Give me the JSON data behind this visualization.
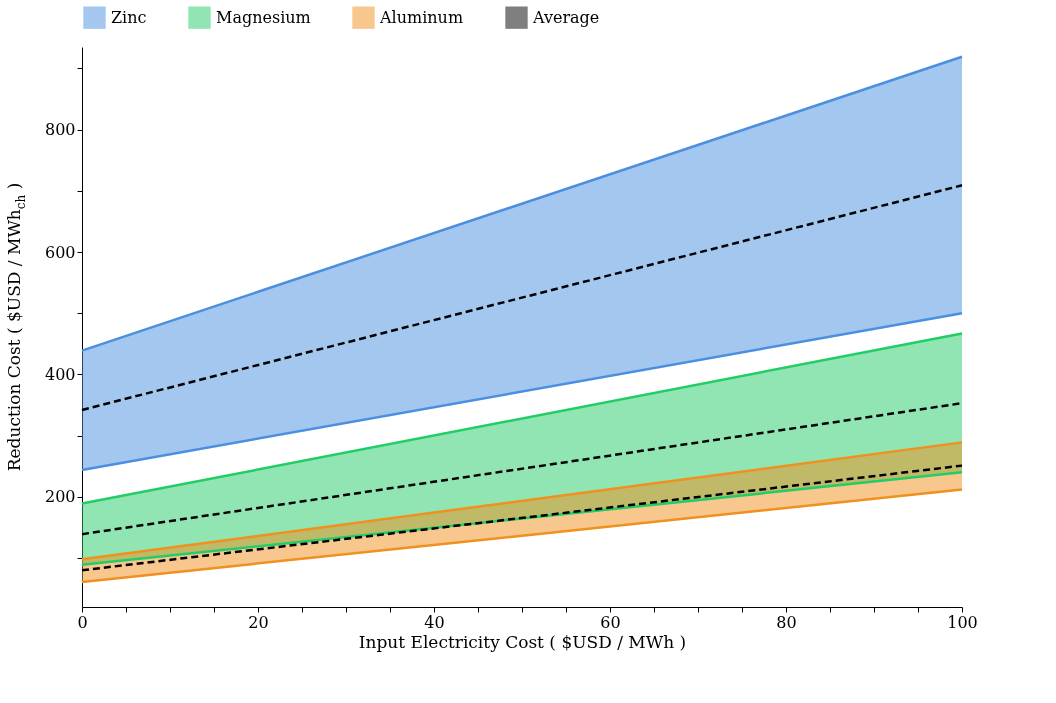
{
  "chart_data": {
    "type": "line",
    "xlabel": "Input Electricity Cost ( $USD / MWh )",
    "ylabel": "Reduction Cost ( $USD / MWh$_{ch}$ )",
    "x": [
      0,
      100
    ],
    "series": [
      {
        "name": "Zinc",
        "color": "#4a8fe0",
        "values": [
          439,
          919
        ],
        "lower": [
          244,
          500
        ],
        "upper": [
          439,
          919
        ]
      },
      {
        "color": "#4a8fe0",
        "values": [
          244,
          500
        ]
      },
      {
        "name": "Magnesium",
        "color": "#22cc66",
        "values": [
          189,
          467
        ],
        "lower": [
          89,
          240
        ],
        "upper": [
          189,
          467
        ]
      },
      {
        "color": "#22cc66",
        "values": [
          89,
          240
        ]
      },
      {
        "name": "Aluminum",
        "color": "#f0901e",
        "values": [
          98,
          289
        ],
        "lower": [
          61,
          212
        ],
        "upper": [
          98,
          289
        ]
      },
      {
        "color": "#f0901e",
        "values": [
          61,
          212
        ]
      },
      {
        "name": "Average",
        "color": "#000000",
        "line_style": "dashed",
        "values": [
          342,
          709
        ]
      },
      {
        "color": "#000000",
        "line_style": "dashed",
        "values": [
          139,
          353
        ]
      },
      {
        "color": "#000000",
        "line_style": "dashed",
        "values": [
          80,
          251
        ]
      }
    ],
    "xlim": [
      0,
      100
    ],
    "xticks": [
      0,
      {
        "value": 5,
        "label": null
      },
      {
        "value": 10,
        "label": null
      },
      {
        "value": 15,
        "label": null
      },
      20,
      {
        "value": 25,
        "label": null
      },
      {
        "value": 30,
        "label": null
      },
      {
        "value": 35,
        "label": null
      },
      40,
      {
        "value": 45,
        "label": null
      },
      {
        "value": 50,
        "label": null
      },
      {
        "value": 55,
        "label": null
      },
      60,
      {
        "value": 65,
        "label": null
      },
      {
        "value": 70,
        "label": null
      },
      {
        "value": 75,
        "label": null
      },
      80,
      {
        "value": 85,
        "label": null
      },
      {
        "value": 90,
        "label": null
      },
      {
        "value": 95,
        "label": null
      },
      100
    ],
    "ylim": [
      20,
      935
    ],
    "yticks": [
      {
        "value": 100,
        "label": null
      },
      200,
      {
        "value": 300,
        "label": null
      },
      400,
      {
        "value": 500,
        "label": null
      },
      600,
      {
        "value": 700,
        "label": null
      },
      800,
      {
        "value": 900,
        "label": null
      }
    ],
    "grid": false,
    "legend": "top"
  }
}
